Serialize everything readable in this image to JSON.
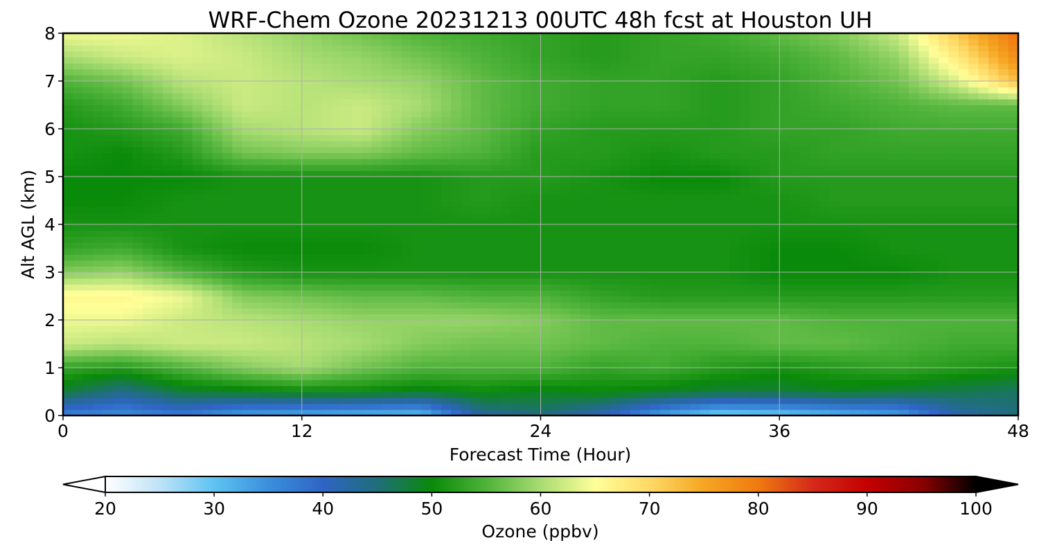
{
  "chart_data": {
    "type": "heatmap",
    "title": "WRF-Chem Ozone  20231213 00UTC 48h fcst at Houston UH",
    "xlabel": "Forecast Time (Hour)",
    "ylabel": "Alt AGL (km)",
    "xlim": [
      0,
      48
    ],
    "ylim": [
      0,
      8
    ],
    "xticks": [
      "0",
      "12",
      "24",
      "36",
      "48"
    ],
    "yticks": [
      "0",
      "1",
      "2",
      "3",
      "4",
      "5",
      "6",
      "7",
      "8"
    ],
    "grid": true,
    "colorbar": {
      "label": "Ozone  (ppbv)",
      "range": [
        20,
        100
      ],
      "ticks": [
        "20",
        "30",
        "40",
        "50",
        "60",
        "70",
        "80",
        "90",
        "100"
      ],
      "extend": "both",
      "colors": [
        "#ffffff",
        "#bfe3f7",
        "#5ec3f2",
        "#3a8fdc",
        "#2f64c4",
        "#1f6e7a",
        "#0a8a0a",
        "#4fb33a",
        "#a8dc72",
        "#ffff99",
        "#ffd966",
        "#f5a623",
        "#f07a10",
        "#d42a1a",
        "#c40000",
        "#8b0000",
        "#000000"
      ]
    },
    "x": [
      0,
      3,
      6,
      9,
      12,
      15,
      18,
      21,
      24,
      27,
      30,
      33,
      36,
      39,
      42,
      45,
      48
    ],
    "y": [
      0,
      0.5,
      1,
      1.5,
      2,
      2.5,
      3,
      3.5,
      4,
      4.5,
      5,
      5.5,
      6,
      6.5,
      7,
      7.5,
      8
    ],
    "z": [
      [
        36,
        35,
        37,
        33,
        32,
        31,
        30,
        43,
        45,
        41,
        33,
        28,
        29,
        31,
        33,
        42,
        45
      ],
      [
        48,
        44,
        48,
        49,
        50,
        50,
        49,
        50,
        49,
        50,
        49,
        48,
        48,
        49,
        48,
        47,
        46
      ],
      [
        53,
        52,
        55,
        58,
        60,
        57,
        55,
        55,
        55,
        53,
        54,
        52,
        51,
        52,
        53,
        52,
        51
      ],
      [
        62,
        61,
        62,
        62,
        61,
        60,
        58,
        57,
        57,
        56,
        55,
        55,
        56,
        56,
        55,
        54,
        54
      ],
      [
        64,
        64,
        62,
        61,
        60,
        59,
        59,
        59,
        58,
        56,
        56,
        56,
        56,
        55,
        55,
        55,
        55
      ],
      [
        66,
        66,
        64,
        58,
        57,
        56,
        56,
        55,
        55,
        53,
        52,
        52,
        52,
        52,
        52,
        52,
        52
      ],
      [
        58,
        59,
        55,
        52,
        51,
        51,
        51,
        51,
        51,
        51,
        51,
        51,
        50,
        50,
        50,
        51,
        51
      ],
      [
        53,
        54,
        51,
        50,
        50,
        50,
        51,
        51,
        51,
        51,
        51,
        51,
        50,
        50,
        51,
        51,
        51
      ],
      [
        51,
        51,
        51,
        51,
        51,
        51,
        51,
        51,
        51,
        51,
        51,
        51,
        51,
        51,
        51,
        51,
        51
      ],
      [
        50,
        50,
        51,
        51,
        51,
        51,
        51,
        52,
        51,
        51,
        51,
        51,
        51,
        52,
        52,
        52,
        52
      ],
      [
        50,
        50,
        50,
        51,
        51,
        51,
        51,
        52,
        52,
        51,
        50,
        50,
        52,
        52,
        52,
        52,
        52
      ],
      [
        51,
        50,
        52,
        57,
        58,
        58,
        56,
        55,
        52,
        52,
        51,
        52,
        52,
        53,
        53,
        53,
        53
      ],
      [
        51,
        52,
        54,
        60,
        61,
        62,
        58,
        56,
        53,
        52,
        52,
        52,
        53,
        53,
        54,
        54,
        54
      ],
      [
        52,
        54,
        58,
        62,
        61,
        62,
        60,
        56,
        54,
        53,
        53,
        52,
        53,
        54,
        55,
        56,
        56
      ],
      [
        55,
        57,
        61,
        62,
        61,
        60,
        59,
        56,
        54,
        53,
        53,
        52,
        53,
        55,
        57,
        63,
        73
      ],
      [
        60,
        62,
        63,
        62,
        60,
        59,
        57,
        55,
        53,
        52,
        53,
        53,
        54,
        56,
        59,
        68,
        78
      ],
      [
        64,
        64,
        63,
        61,
        59,
        57,
        55,
        54,
        53,
        52,
        53,
        54,
        56,
        58,
        62,
        72,
        81
      ]
    ]
  }
}
